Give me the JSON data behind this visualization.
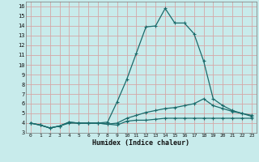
{
  "xlabel": "Humidex (Indice chaleur)",
  "background_color": "#c8ebeb",
  "grid_color": "#d4a8a8",
  "line_color": "#1a6b6b",
  "xlim": [
    -0.5,
    23.5
  ],
  "ylim": [
    3,
    16.5
  ],
  "yticks": [
    3,
    4,
    5,
    6,
    7,
    8,
    9,
    10,
    11,
    12,
    13,
    14,
    15,
    16
  ],
  "xticks": [
    0,
    1,
    2,
    3,
    4,
    5,
    6,
    7,
    8,
    9,
    10,
    11,
    12,
    13,
    14,
    15,
    16,
    17,
    18,
    19,
    20,
    21,
    22,
    23
  ],
  "series": [
    {
      "x": [
        0,
        1,
        2,
        3,
        4,
        5,
        6,
        7,
        8,
        9,
        10,
        11,
        12,
        13,
        14,
        15,
        16,
        17,
        18,
        19,
        20,
        21,
        22,
        23
      ],
      "y": [
        4.0,
        3.8,
        3.5,
        3.7,
        4.0,
        4.0,
        4.0,
        4.0,
        3.9,
        3.8,
        4.2,
        4.3,
        4.3,
        4.4,
        4.5,
        4.5,
        4.5,
        4.5,
        4.5,
        4.5,
        4.5,
        4.5,
        4.5,
        4.5
      ]
    },
    {
      "x": [
        0,
        1,
        2,
        3,
        4,
        5,
        6,
        7,
        8,
        9,
        10,
        11,
        12,
        13,
        14,
        15,
        16,
        17,
        18,
        19,
        20,
        21,
        22,
        23
      ],
      "y": [
        4.0,
        3.8,
        3.5,
        3.7,
        4.1,
        4.0,
        4.0,
        4.0,
        3.9,
        4.0,
        4.5,
        4.8,
        5.1,
        5.3,
        5.5,
        5.6,
        5.8,
        6.0,
        6.5,
        5.8,
        5.5,
        5.2,
        5.0,
        4.8
      ]
    },
    {
      "x": [
        0,
        1,
        2,
        3,
        4,
        5,
        6,
        7,
        8,
        9,
        10,
        11,
        12,
        13,
        14,
        15,
        16,
        17,
        18,
        19,
        20,
        21,
        22,
        23
      ],
      "y": [
        4.0,
        3.8,
        3.5,
        3.7,
        4.1,
        4.0,
        4.0,
        4.0,
        4.1,
        6.2,
        8.5,
        11.2,
        13.9,
        14.0,
        15.8,
        14.3,
        14.3,
        13.2,
        10.4,
        6.5,
        5.8,
        5.3,
        5.0,
        4.7
      ]
    }
  ]
}
